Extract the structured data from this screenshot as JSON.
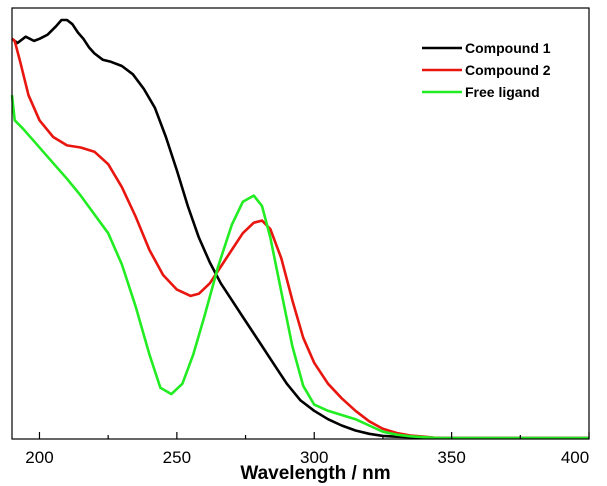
{
  "chart_data": {
    "type": "line",
    "xlabel": "Wavelength / nm",
    "ylabel": "",
    "xlim": [
      190,
      400
    ],
    "ylim": [
      0,
      1.0
    ],
    "xticks": [
      200,
      250,
      300,
      350,
      400
    ],
    "yticks_shown": false,
    "grid": false,
    "legend_position": "top-right",
    "series": [
      {
        "name": "Compound 1",
        "color": "#000000",
        "x": [
          190,
          192,
          195,
          198,
          200,
          203,
          206,
          208,
          210,
          212,
          214,
          216,
          218,
          220,
          223,
          226,
          230,
          234,
          238,
          242,
          246,
          250,
          254,
          258,
          262,
          266,
          270,
          275,
          280,
          285,
          290,
          295,
          300,
          305,
          310,
          315,
          320,
          325,
          330,
          335,
          340,
          345,
          350,
          360,
          370,
          380,
          390,
          400
        ],
        "y": [
          0.955,
          0.945,
          0.96,
          0.95,
          0.955,
          0.965,
          0.985,
          1.0,
          1.0,
          0.99,
          0.97,
          0.955,
          0.935,
          0.92,
          0.905,
          0.9,
          0.89,
          0.87,
          0.835,
          0.79,
          0.72,
          0.64,
          0.555,
          0.48,
          0.42,
          0.37,
          0.33,
          0.28,
          0.23,
          0.18,
          0.13,
          0.09,
          0.065,
          0.045,
          0.03,
          0.018,
          0.01,
          0.005,
          0.003,
          0.002,
          0.0,
          0.0,
          0.0,
          0.0,
          0.0,
          0.0,
          0.0,
          0.0
        ]
      },
      {
        "name": "Compound 2",
        "color": "#e8160f",
        "x": [
          190,
          191,
          193,
          196,
          200,
          205,
          210,
          215,
          220,
          225,
          230,
          235,
          240,
          245,
          250,
          255,
          258,
          262,
          266,
          270,
          274,
          278,
          281,
          284,
          288,
          292,
          296,
          300,
          305,
          310,
          315,
          320,
          325,
          330,
          335,
          340,
          345,
          350,
          360,
          370,
          380,
          390,
          400
        ],
        "y": [
          0.955,
          0.95,
          0.9,
          0.82,
          0.76,
          0.72,
          0.7,
          0.695,
          0.685,
          0.655,
          0.6,
          0.53,
          0.45,
          0.39,
          0.355,
          0.34,
          0.345,
          0.37,
          0.41,
          0.45,
          0.49,
          0.515,
          0.52,
          0.5,
          0.43,
          0.33,
          0.24,
          0.18,
          0.13,
          0.095,
          0.065,
          0.04,
          0.022,
          0.012,
          0.006,
          0.003,
          0.0,
          0.0,
          0.0,
          0.0,
          0.0,
          0.0,
          0.0
        ]
      },
      {
        "name": "Free ligand",
        "color": "#22ec22",
        "x": [
          190,
          191,
          194,
          198,
          202,
          206,
          210,
          215,
          220,
          225,
          230,
          235,
          240,
          244,
          248,
          252,
          256,
          260,
          265,
          270,
          274,
          278,
          281,
          284,
          288,
          292,
          296,
          300,
          305,
          310,
          315,
          320,
          325,
          330,
          335,
          340,
          345,
          350,
          360,
          370,
          380,
          390,
          400
        ],
        "y": [
          0.82,
          0.76,
          0.74,
          0.71,
          0.68,
          0.65,
          0.62,
          0.58,
          0.535,
          0.49,
          0.415,
          0.315,
          0.2,
          0.12,
          0.105,
          0.13,
          0.2,
          0.29,
          0.41,
          0.51,
          0.565,
          0.58,
          0.555,
          0.48,
          0.35,
          0.22,
          0.125,
          0.08,
          0.065,
          0.055,
          0.045,
          0.03,
          0.015,
          0.008,
          0.004,
          0.002,
          0.0,
          0.0,
          0.0,
          0.0,
          0.0,
          0.0,
          0.0
        ]
      }
    ]
  }
}
